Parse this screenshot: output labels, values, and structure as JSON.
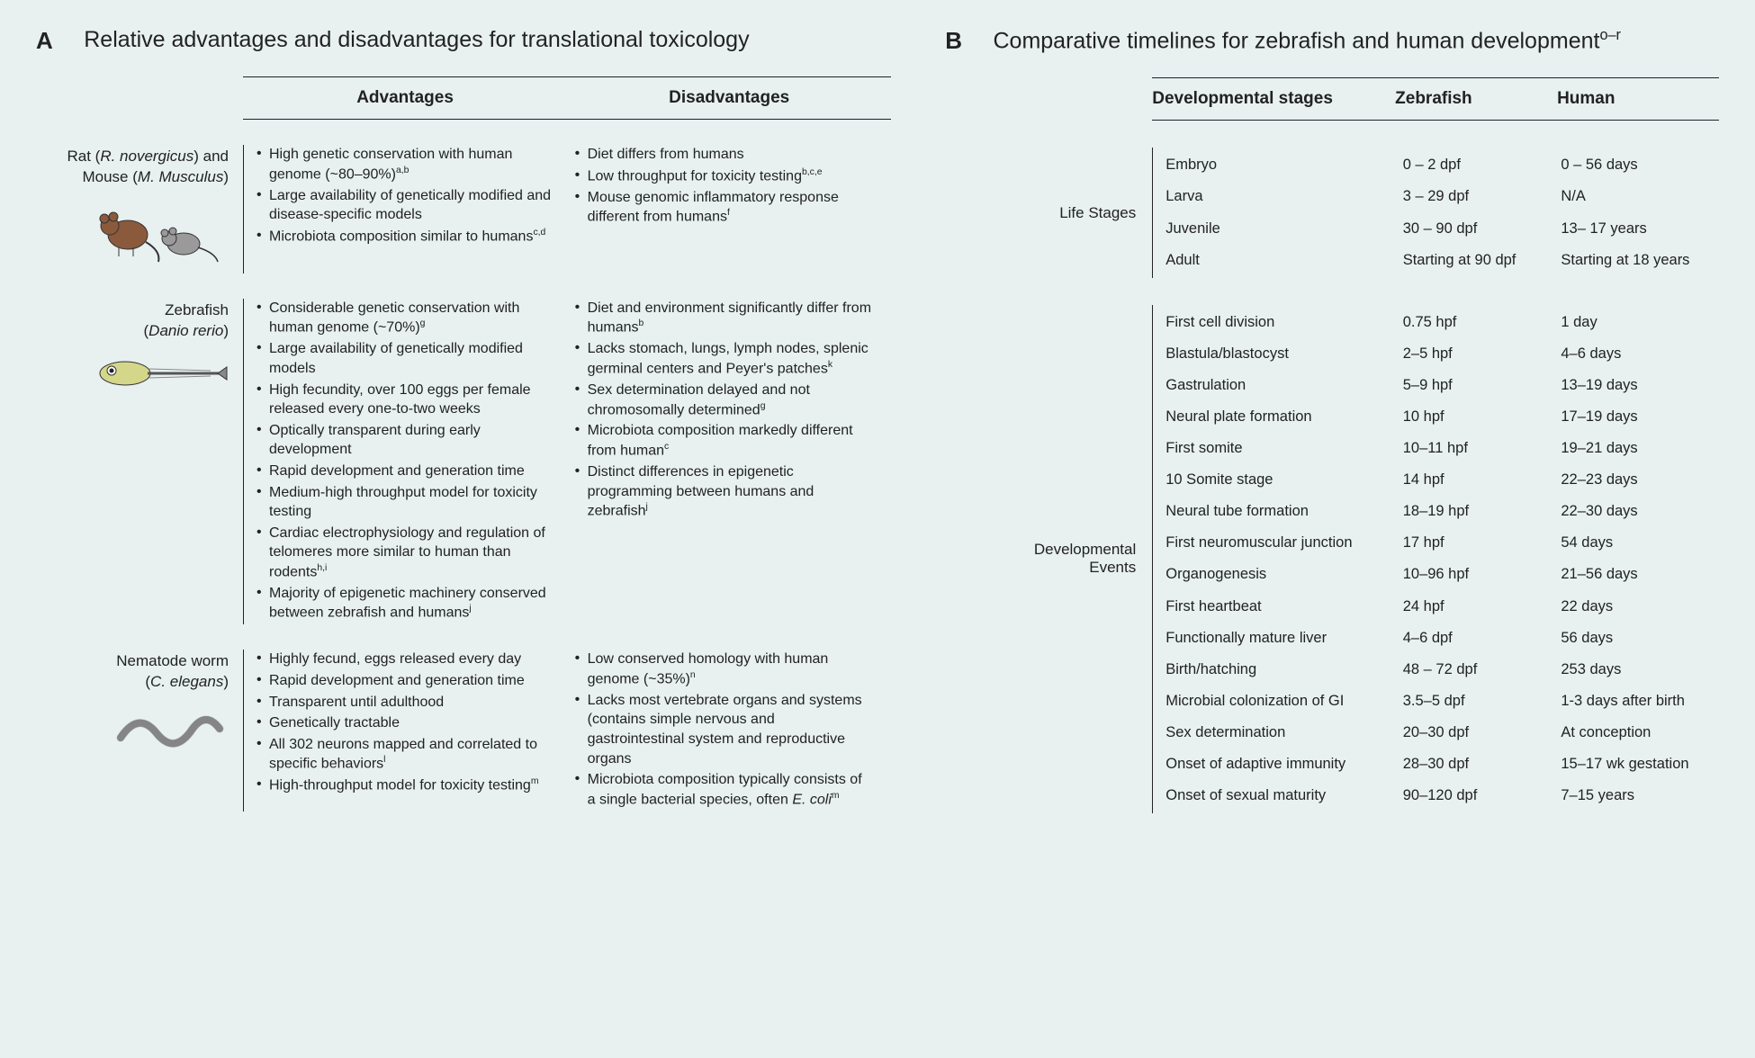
{
  "panelA": {
    "label": "A",
    "title": "Relative advantages and disadvantages for translational toxicology",
    "headers": {
      "adv": "Advantages",
      "dis": "Disadvantages"
    },
    "rows": [
      {
        "species_html": "Rat (<span class='italic'>R. novergicus</span>) and Mouse (<span class='italic'>M. Musculus</span>)",
        "illus": "rodent",
        "adv": [
          "High genetic conservation with human genome (~80–90%)<sup>a,b</sup>",
          "Large availability of genetically modified and disease-specific models",
          "Microbiota composition similar to humans<sup>c,d</sup>"
        ],
        "dis": [
          "Diet differs from humans",
          "Low throughput for toxicity testing<sup>b,c,e</sup>",
          "Mouse genomic inflammatory response different from humans<sup>f</sup>"
        ]
      },
      {
        "species_html": "Zebrafish<br>(<span class='italic'>Danio rerio</span>)",
        "illus": "zebrafish",
        "adv": [
          "Considerable genetic conservation with human genome (~70%)<sup>g</sup>",
          "Large availability of genetically modified models",
          "High fecundity, over 100 eggs per female released every one-to-two weeks",
          "Optically transparent during early development",
          "Rapid development and generation time",
          "Medium-high throughput model for toxicity testing",
          "Cardiac electrophysiology and regulation of telomeres more similar to human than rodents<sup>h,i</sup>",
          "Majority of epigenetic machinery conserved between zebrafish and humans<sup>j</sup>"
        ],
        "dis": [
          "Diet and environment significantly differ from humans<sup>b</sup>",
          "Lacks stomach, lungs, lymph nodes, splenic germinal centers and Peyer's patches<sup>k</sup>",
          "Sex determination delayed and not chromosomally determined<sup>g</sup>",
          "Microbiota composition markedly different from human<sup>c</sup>",
          "Distinct differences in epigenetic programming between humans and zebrafish<sup>j</sup>"
        ]
      },
      {
        "species_html": "Nematode worm<br>(<span class='italic'>C. elegans</span>)",
        "illus": "worm",
        "adv": [
          "Highly fecund, eggs released every day",
          "Rapid development and generation time",
          "Transparent until adulthood",
          "Genetically tractable",
          "All 302 neurons mapped and correlated to specific behaviors<sup>l</sup>",
          "High-throughput model for toxicity testing<sup>m</sup>"
        ],
        "dis": [
          "Low conserved homology with human genome (~35%)<sup>n</sup>",
          "Lacks most vertebrate organs and systems (contains simple nervous and gastrointestinal system and reproductive organs",
          "Microbiota composition typically consists of a single bacterial species, often <span class='italic'>E. coli</span><sup>m</sup>"
        ]
      }
    ]
  },
  "panelB": {
    "label": "B",
    "title_html": "Comparative timelines for zebrafish and human development<sup>o–r</sup>",
    "headers": {
      "c1": "Developmental stages",
      "c2": "Zebrafish",
      "c3": "Human"
    },
    "sections": [
      {
        "label": "Life Stages",
        "rows": [
          {
            "c1": "Embryo",
            "c2": "0 – 2 dpf",
            "c3": "0 – 56 days"
          },
          {
            "c1": "Larva",
            "c2": "3 – 29 dpf",
            "c3": "N/A"
          },
          {
            "c1": "Juvenile",
            "c2": "30 – 90 dpf",
            "c3": "13– 17 years"
          },
          {
            "c1": "Adult",
            "c2": "Starting at 90 dpf",
            "c3": "Starting at 18 years"
          }
        ]
      },
      {
        "label": "Developmental Events",
        "rows": [
          {
            "c1": "First cell division",
            "c2": "0.75 hpf",
            "c3": "1 day"
          },
          {
            "c1": "Blastula/blastocyst",
            "c2": "2–5 hpf",
            "c3": "4–6 days"
          },
          {
            "c1": "Gastrulation",
            "c2": "5–9 hpf",
            "c3": "13–19 days"
          },
          {
            "c1": "Neural plate formation",
            "c2": "10 hpf",
            "c3": "17–19 days"
          },
          {
            "c1": "First somite",
            "c2": "10–11 hpf",
            "c3": "19–21 days"
          },
          {
            "c1": "10 Somite stage",
            "c2": "14 hpf",
            "c3": "22–23 days"
          },
          {
            "c1": "Neural tube formation",
            "c2": "18–19 hpf",
            "c3": "22–30 days"
          },
          {
            "c1": "First neuromuscular junction",
            "c2": "17 hpf",
            "c3": "54 days"
          },
          {
            "c1": "Organogenesis",
            "c2": "10–96 hpf",
            "c3": "21–56 days"
          },
          {
            "c1": "First heartbeat",
            "c2": "24 hpf",
            "c3": "22 days"
          },
          {
            "c1": "Functionally mature liver",
            "c2": "4–6 dpf",
            "c3": "56 days"
          },
          {
            "c1": "Birth/hatching",
            "c2": "48 – 72 dpf",
            "c3": "253 days"
          },
          {
            "c1": "Microbial colonization of GI",
            "c2": "3.5–5 dpf",
            "c3": "1-3 days after birth"
          },
          {
            "c1": "Sex determination",
            "c2": "20–30 dpf",
            "c3": "At conception"
          },
          {
            "c1": "Onset of adaptive immunity",
            "c2": "28–30 dpf",
            "c3": "15–17 wk gestation"
          },
          {
            "c1": "Onset of sexual maturity",
            "c2": "90–120 dpf",
            "c3": "7–15 years"
          }
        ]
      }
    ]
  },
  "colors": {
    "bg": "#e8f0f0",
    "text": "#222",
    "rat": "#8b5a3c",
    "mouse": "#9a9a9a",
    "fish_body": "#d4d68a",
    "worm": "#9a9a9a"
  }
}
